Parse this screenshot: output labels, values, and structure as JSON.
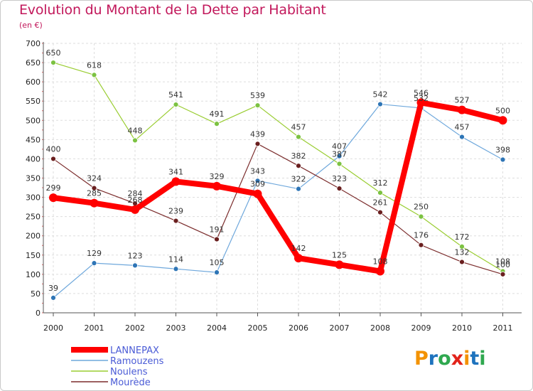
{
  "title": "Evolution du Montant de la Dette par Habitant",
  "subtitle": "(en €)",
  "logo": {
    "text": "Proxiti",
    "letters": [
      {
        "ch": "P",
        "color": "#f39200"
      },
      {
        "ch": "r",
        "color": "#1e73be"
      },
      {
        "ch": "o",
        "color": "#2fa84f"
      },
      {
        "ch": "x",
        "color": "#e2231a"
      },
      {
        "ch": "i",
        "color": "#f39200"
      },
      {
        "ch": "t",
        "color": "#1e73be"
      },
      {
        "ch": "i",
        "color": "#2fa84f"
      }
    ]
  },
  "chart_data": {
    "type": "line",
    "x": [
      "2000",
      "2001",
      "2002",
      "2003",
      "2004",
      "2005",
      "2006",
      "2007",
      "2008",
      "2009",
      "2010",
      "2011"
    ],
    "ylim": [
      0,
      700
    ],
    "yticks": [
      0,
      50,
      100,
      150,
      200,
      250,
      300,
      350,
      400,
      450,
      500,
      550,
      600,
      650,
      700
    ],
    "grid": true,
    "legend_position": "bottom-left",
    "series": [
      {
        "name": "LANNEPAX",
        "color": "#ff0000",
        "width": 8,
        "marker_r": 6,
        "values": [
          299,
          285,
          268,
          341,
          329,
          309,
          142,
          125,
          108,
          546,
          527,
          500
        ],
        "labels": [
          "299",
          "285",
          "268",
          "341",
          "329",
          "309",
          "142",
          "125",
          "108",
          "546",
          "527",
          "500"
        ]
      },
      {
        "name": "Ramouzens",
        "color": "#6fa8dc",
        "marker_color": "#2e75b6",
        "width": 1.2,
        "marker_r": 3.5,
        "values": [
          39,
          129,
          123,
          114,
          105,
          343,
          322,
          407,
          542,
          532,
          457,
          398
        ],
        "labels": [
          "39",
          "129",
          "123",
          "114",
          "105",
          "343",
          "322",
          "407",
          "542",
          "532",
          "457",
          "398"
        ]
      },
      {
        "name": "Noulens",
        "color": "#9acd32",
        "marker_color": "#7cc242",
        "width": 1.2,
        "marker_r": 3.5,
        "values": [
          650,
          618,
          448,
          541,
          491,
          539,
          457,
          387,
          312,
          250,
          172,
          108
        ],
        "labels": [
          "650",
          "618",
          "448",
          "541",
          "491",
          "539",
          "457",
          "387",
          "312",
          "250",
          "172",
          "108"
        ]
      },
      {
        "name": "Mourède",
        "color": "#7b2c2c",
        "marker_color": "#6a1f1f",
        "width": 1.2,
        "marker_r": 3.5,
        "values": [
          400,
          324,
          284,
          239,
          191,
          439,
          382,
          323,
          261,
          176,
          132,
          100
        ],
        "labels": [
          "400",
          "324",
          "284",
          "239",
          "191",
          "439",
          "382",
          "323",
          "261",
          "176",
          "132",
          "100"
        ]
      }
    ]
  }
}
